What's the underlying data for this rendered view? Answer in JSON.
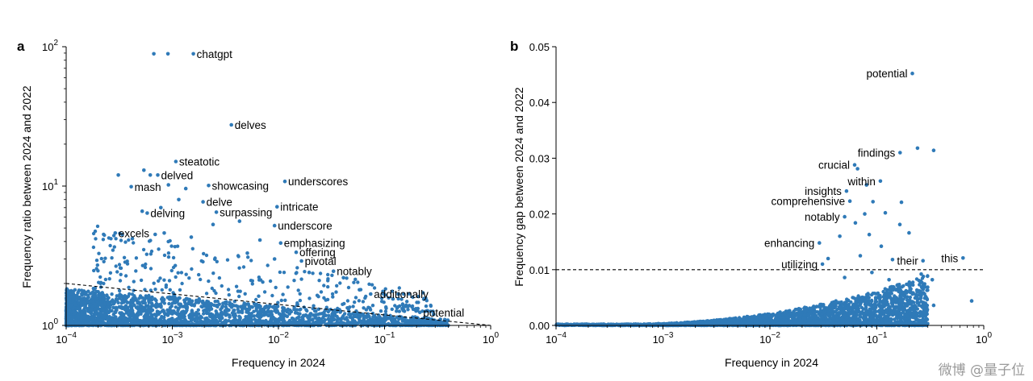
{
  "colors": {
    "point": "#2f7ab8",
    "axis": "#000000",
    "reference_line": "#000000"
  },
  "watermark": "微博 @量子位",
  "chart_data": [
    {
      "panel": "a",
      "type": "scatter",
      "xlabel": "Frequency in 2024",
      "ylabel": "Frequency ratio between 2024 and 2022",
      "xscale": "log",
      "yscale": "log",
      "xlim": [
        0.0001,
        1
      ],
      "ylim": [
        1,
        100
      ],
      "x_ticks": [
        {
          "value": 0.0001,
          "base": "10",
          "exp": "−4"
        },
        {
          "value": 0.001,
          "base": "10",
          "exp": "−3"
        },
        {
          "value": 0.01,
          "base": "10",
          "exp": "−2"
        },
        {
          "value": 0.1,
          "base": "10",
          "exp": "−1"
        },
        {
          "value": 1,
          "base": "10",
          "exp": "0"
        }
      ],
      "y_ticks": [
        {
          "value": 1,
          "base": "10",
          "exp": "0"
        },
        {
          "value": 10,
          "base": "10",
          "exp": "1"
        },
        {
          "value": 100,
          "base": "10",
          "exp": "2"
        }
      ],
      "reference_line": {
        "style": "dashed",
        "from": [
          0.0001,
          2.0
        ],
        "to": [
          1,
          1.0
        ]
      },
      "labeled_points": [
        {
          "word": "chatgpt",
          "x": 0.00158,
          "y": 89
        },
        {
          "word": "delves",
          "x": 0.0036,
          "y": 27.5
        },
        {
          "word": "steatotic",
          "x": 0.00108,
          "y": 15.0
        },
        {
          "word": "delved",
          "x": 0.00073,
          "y": 12.0
        },
        {
          "word": "mash",
          "x": 0.00041,
          "y": 9.9
        },
        {
          "word": "showcasing",
          "x": 0.0022,
          "y": 10.1
        },
        {
          "word": "underscores",
          "x": 0.0115,
          "y": 10.8
        },
        {
          "word": "delve",
          "x": 0.00195,
          "y": 7.7
        },
        {
          "word": "intricate",
          "x": 0.0097,
          "y": 7.1
        },
        {
          "word": "delving",
          "x": 0.00058,
          "y": 6.4
        },
        {
          "word": "surpassing",
          "x": 0.0026,
          "y": 6.5
        },
        {
          "word": "underscore",
          "x": 0.0092,
          "y": 5.2
        },
        {
          "word": "excels",
          "x": 0.00029,
          "y": 4.6
        },
        {
          "word": "emphasizing",
          "x": 0.0105,
          "y": 3.9
        },
        {
          "word": "offering",
          "x": 0.0147,
          "y": 3.35
        },
        {
          "word": "pivotal",
          "x": 0.0165,
          "y": 2.9
        },
        {
          "word": "notably",
          "x": 0.033,
          "y": 2.45
        },
        {
          "word": "additionally",
          "x": 0.074,
          "y": 1.68
        },
        {
          "word": "potential",
          "x": 0.215,
          "y": 1.24
        }
      ],
      "unlabeled_points": [
        {
          "x": 0.00067,
          "y": 89
        },
        {
          "x": 0.00091,
          "y": 89
        },
        {
          "x": 0.00031,
          "y": 12.0
        },
        {
          "x": 0.00054,
          "y": 13.0
        },
        {
          "x": 0.00062,
          "y": 12.0
        },
        {
          "x": 0.00092,
          "y": 10.2
        },
        {
          "x": 0.00134,
          "y": 9.6
        },
        {
          "x": 0.00115,
          "y": 8.0
        },
        {
          "x": 0.00078,
          "y": 7.0
        },
        {
          "x": 0.00052,
          "y": 6.6
        },
        {
          "x": 0.00242,
          "y": 5.3
        },
        {
          "x": 0.0043,
          "y": 5.6
        },
        {
          "x": 0.00069,
          "y": 4.5
        },
        {
          "x": 0.00084,
          "y": 4.6
        },
        {
          "x": 0.00042,
          "y": 4.2
        },
        {
          "x": 0.00151,
          "y": 4.3
        },
        {
          "x": 0.0067,
          "y": 4.1
        },
        {
          "x": 0.058,
          "y": 1.8
        },
        {
          "x": 0.0051,
          "y": 3.3
        },
        {
          "x": 0.0092,
          "y": 3.0
        },
        {
          "x": 0.0195,
          "y": 2.4
        },
        {
          "x": 0.041,
          "y": 2.2
        },
        {
          "x": 0.12,
          "y": 1.55
        },
        {
          "x": 0.29,
          "y": 1.2
        },
        {
          "x": 0.15,
          "y": 1.28
        },
        {
          "x": 0.37,
          "y": 1.1
        }
      ],
      "cloud": {
        "x_range": [
          0.0001,
          0.4
        ],
        "y_min": 1.0,
        "y_max_at_low_x": 3.0,
        "y_max_at_high_x": 1.2
      }
    },
    {
      "panel": "b",
      "type": "scatter",
      "xlabel": "Frequency in 2024",
      "ylabel": "Frequency gap between 2024 and 2022",
      "xscale": "log",
      "yscale": "linear",
      "xlim": [
        0.0001,
        1
      ],
      "ylim": [
        0,
        0.05
      ],
      "x_ticks": [
        {
          "value": 0.0001,
          "base": "10",
          "exp": "−4"
        },
        {
          "value": 0.001,
          "base": "10",
          "exp": "−3"
        },
        {
          "value": 0.01,
          "base": "10",
          "exp": "−2"
        },
        {
          "value": 0.1,
          "base": "10",
          "exp": "−1"
        },
        {
          "value": 1,
          "base": "10",
          "exp": "0"
        }
      ],
      "y_ticks": [
        {
          "value": 0,
          "label": "0.00"
        },
        {
          "value": 0.01,
          "label": "0.01"
        },
        {
          "value": 0.02,
          "label": "0.02"
        },
        {
          "value": 0.03,
          "label": "0.03"
        },
        {
          "value": 0.04,
          "label": "0.04"
        },
        {
          "value": 0.05,
          "label": "0.05"
        }
      ],
      "reference_line": {
        "style": "dashed",
        "y": 0.01
      },
      "labeled_points": [
        {
          "word": "potential",
          "x": 0.215,
          "y": 0.0452
        },
        {
          "word": "findings",
          "x": 0.165,
          "y": 0.031
        },
        {
          "word": "crucial",
          "x": 0.062,
          "y": 0.0288
        },
        {
          "word": "within",
          "x": 0.108,
          "y": 0.0259
        },
        {
          "word": "insights",
          "x": 0.052,
          "y": 0.0241
        },
        {
          "word": "comprehensive",
          "x": 0.056,
          "y": 0.0223
        },
        {
          "word": "notably",
          "x": 0.05,
          "y": 0.0195
        },
        {
          "word": "enhancing",
          "x": 0.029,
          "y": 0.0148
        },
        {
          "word": "utilizing",
          "x": 0.031,
          "y": 0.011
        },
        {
          "word": "their",
          "x": 0.27,
          "y": 0.0116
        },
        {
          "word": "this",
          "x": 0.64,
          "y": 0.0121
        }
      ],
      "unlabeled_points": [
        {
          "x": 0.24,
          "y": 0.0318
        },
        {
          "x": 0.34,
          "y": 0.0314
        },
        {
          "x": 0.066,
          "y": 0.0281
        },
        {
          "x": 0.08,
          "y": 0.0252
        },
        {
          "x": 0.092,
          "y": 0.0222
        },
        {
          "x": 0.17,
          "y": 0.0221
        },
        {
          "x": 0.077,
          "y": 0.02
        },
        {
          "x": 0.12,
          "y": 0.0202
        },
        {
          "x": 0.063,
          "y": 0.0184
        },
        {
          "x": 0.164,
          "y": 0.0181
        },
        {
          "x": 0.045,
          "y": 0.016
        },
        {
          "x": 0.085,
          "y": 0.0163
        },
        {
          "x": 0.2,
          "y": 0.0166
        },
        {
          "x": 0.11,
          "y": 0.0142
        },
        {
          "x": 0.07,
          "y": 0.0125
        },
        {
          "x": 0.14,
          "y": 0.0118
        },
        {
          "x": 0.035,
          "y": 0.012
        },
        {
          "x": 0.26,
          "y": 0.0092
        },
        {
          "x": 0.33,
          "y": 0.0082
        },
        {
          "x": 0.34,
          "y": 0.0036
        },
        {
          "x": 0.77,
          "y": 0.0044
        },
        {
          "x": 0.13,
          "y": 0.0082
        },
        {
          "x": 0.09,
          "y": 0.0095
        },
        {
          "x": 0.05,
          "y": 0.0086
        }
      ],
      "cloud": {
        "x_range": [
          0.0001,
          0.3
        ],
        "y_max_formula": "rises steeply above 1e-3",
        "y_min": 0
      }
    }
  ]
}
